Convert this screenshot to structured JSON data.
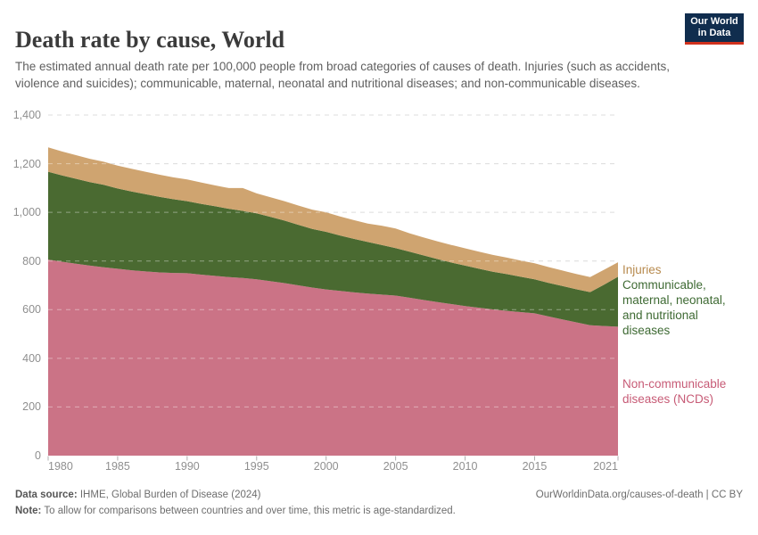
{
  "header": {
    "logo": {
      "line1": "Our World",
      "line2": "in Data"
    }
  },
  "chart_data": {
    "type": "area",
    "stacked": true,
    "title": "Death rate by cause, World",
    "subtitle": "The estimated annual death rate per 100,000 people from broad categories of causes of death. Injuries (such as accidents, violence and suicides); communicable, maternal, neonatal and nutritional diseases; and non-communicable diseases.",
    "xlabel": "",
    "ylabel": "",
    "xlim": [
      1980,
      2021
    ],
    "ylim": [
      0,
      1400
    ],
    "grid": "dashed",
    "legend_position": "right-of-plot",
    "x": [
      1980,
      1981,
      1982,
      1983,
      1984,
      1985,
      1986,
      1987,
      1988,
      1989,
      1990,
      1991,
      1992,
      1993,
      1994,
      1995,
      1996,
      1997,
      1998,
      1999,
      2000,
      2001,
      2002,
      2003,
      2004,
      2005,
      2006,
      2007,
      2008,
      2009,
      2010,
      2011,
      2012,
      2013,
      2014,
      2015,
      2016,
      2017,
      2018,
      2019,
      2020,
      2021
    ],
    "xticks": [
      1980,
      1985,
      1990,
      1995,
      2000,
      2005,
      2010,
      2015,
      2021
    ],
    "ytick_values": [
      0,
      200,
      400,
      600,
      800,
      1000,
      1200,
      1400
    ],
    "ytick_labels": [
      "0",
      "200",
      "400",
      "600",
      "800",
      "1,000",
      "1,200",
      "1,400"
    ],
    "series": [
      {
        "name": "Non-communicable diseases (NCDs)",
        "label": "Non-communicable\ndiseases (NCDs)",
        "color": "#cb7386",
        "label_color": "#c75b76",
        "values": [
          806,
          797,
          789,
          781,
          774,
          768,
          762,
          757,
          753,
          751,
          750,
          744,
          739,
          734,
          730,
          725,
          717,
          709,
          700,
          691,
          683,
          677,
          671,
          666,
          662,
          658,
          649,
          640,
          631,
          623,
          615,
          608,
          601,
          595,
          590,
          585,
          572,
          560,
          548,
          536,
          533,
          530
        ]
      },
      {
        "name": "Communicable, maternal, neonatal, and nutritional diseases",
        "label": "Communicable,\nmaternal, neonatal,\nand nutritional\ndiseases",
        "color": "#4a6a31",
        "label_color": "#3e6a33",
        "values": [
          361,
          355,
          349,
          343,
          339,
          330,
          324,
          318,
          311,
          303,
          296,
          291,
          286,
          281,
          276,
          271,
          264,
          257,
          249,
          241,
          237,
          228,
          220,
          212,
          204,
          195,
          189,
          183,
          177,
          171,
          166,
          160,
          155,
          151,
          145,
          140,
          138,
          137,
          136,
          136,
          170,
          205
        ]
      },
      {
        "name": "Injuries",
        "label": "Injuries",
        "color": "#cfa470",
        "label_color": "#b78a4e",
        "values": [
          100,
          98,
          97,
          96,
          95,
          94,
          93,
          92,
          91,
          90,
          89,
          88,
          86,
          85,
          94,
          82,
          81,
          80,
          79,
          79,
          80,
          78,
          77,
          76,
          79,
          81,
          76,
          74,
          73,
          72,
          71,
          70,
          69,
          68,
          67,
          66,
          65,
          64,
          63,
          62,
          61,
          60
        ]
      }
    ]
  },
  "footer": {
    "source_label": "Data source:",
    "source_text": " IHME, Global Burden of Disease (2024)",
    "attribution": "OurWorldinData.org/causes-of-death | CC BY",
    "note_label": "Note:",
    "note_text": " To allow for comparisons between countries and over time, this metric is age-standardized."
  }
}
